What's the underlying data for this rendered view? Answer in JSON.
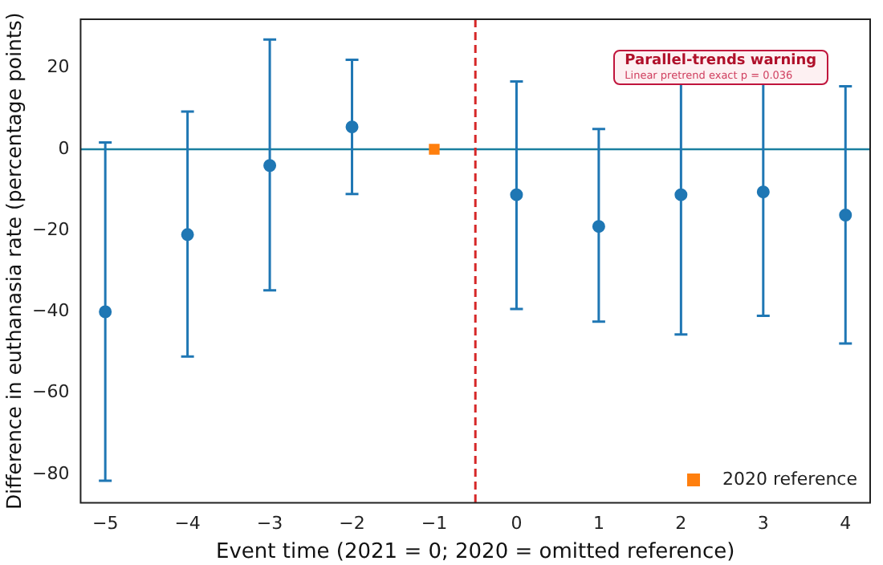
{
  "chart_data": {
    "type": "scatter",
    "xlabel": "Event time (2021 = 0; 2020 = omitted reference)",
    "ylabel": "Difference in euthanasia rate (percentage points)",
    "series": [
      {
        "color": "#1f77b4",
        "x": [
          -5,
          -4,
          -3,
          -2,
          0,
          1,
          2,
          3,
          4
        ],
        "values": [
          -40,
          -21,
          -4,
          5.5,
          -11.2,
          -19,
          -11.2,
          -10.5,
          -16.2
        ],
        "errors": [
          [
            -81.6,
            1.7
          ],
          [
            -51,
            9.3
          ],
          [
            -34.7,
            27
          ],
          [
            -11,
            22
          ],
          [
            -39.3,
            16.7
          ],
          [
            -42.4,
            5
          ],
          [
            -45.6,
            23
          ],
          [
            -41,
            20.5
          ],
          [
            -47.8,
            15.5
          ]
        ],
        "marker": "circle"
      },
      {
        "name": "2020 reference",
        "color": "#ff7f0e",
        "x": [
          -1
        ],
        "values": [
          0
        ],
        "marker": "square"
      }
    ],
    "xlim": [
      -5.3,
      4.3
    ],
    "xticks": [
      -5,
      -4,
      -3,
      -2,
      -1,
      0,
      1,
      2,
      3,
      4
    ],
    "ylim": [
      -87,
      32
    ],
    "yticks": [
      -80,
      -60,
      -40,
      -20,
      0,
      20
    ],
    "ref_lines": [
      {
        "axis": "y",
        "value": 0,
        "color": "#1a7fa0",
        "line_style": "solid"
      },
      {
        "axis": "x",
        "value": -0.5,
        "color": "#d62728",
        "line_style": "dashed"
      }
    ],
    "annotations": [
      "Parallel-trends warning",
      "Linear pretrend exact p = 0.036"
    ],
    "legend": "bottom right",
    "grid": false
  }
}
